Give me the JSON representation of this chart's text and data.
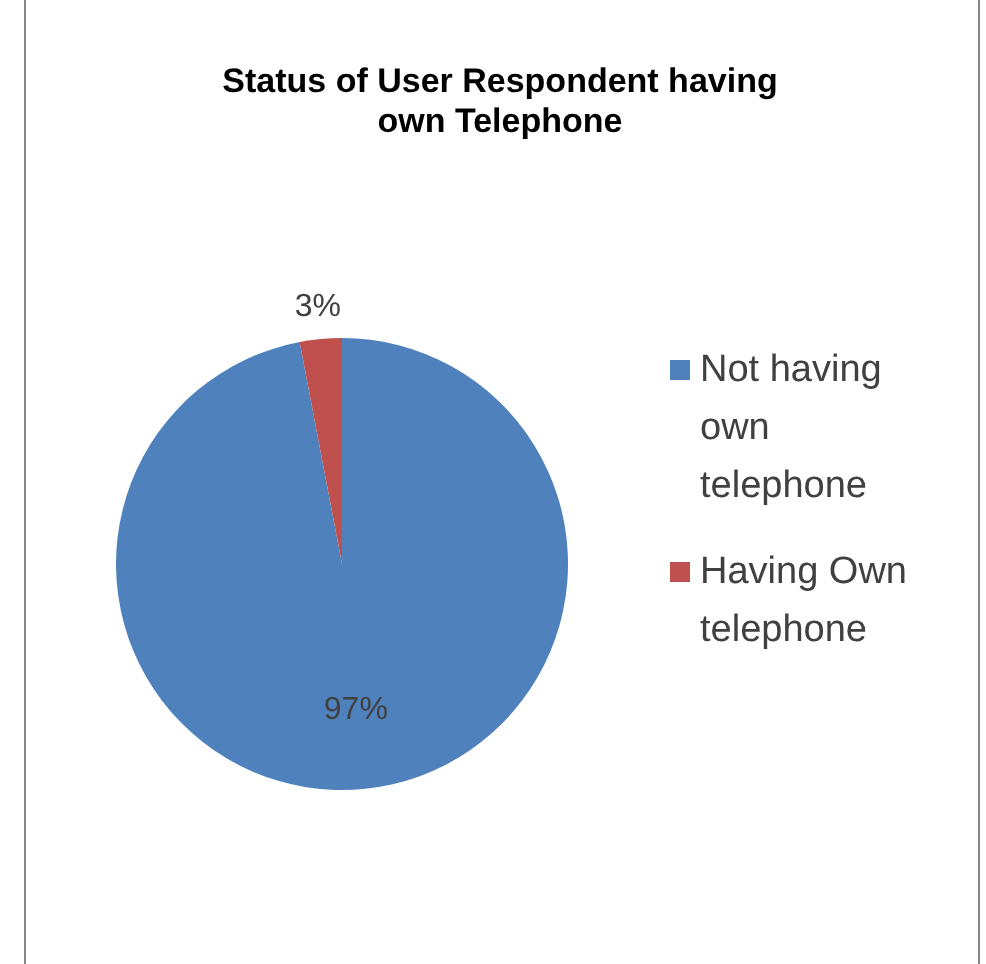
{
  "chart_data": {
    "type": "pie",
    "title": "Status of User Respondent having own Telephone",
    "categories": [
      "Not having own telephone",
      "Having Own telephone"
    ],
    "values": [
      97,
      3
    ],
    "colors": [
      "#4f81bd",
      "#c0504d"
    ],
    "value_labels": [
      "97%",
      "3%"
    ],
    "legend": "right"
  }
}
